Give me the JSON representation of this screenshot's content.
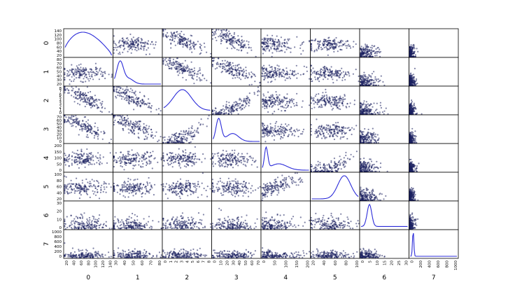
{
  "chart_data": {
    "type": "scatter_matrix",
    "variables": [
      "0",
      "1",
      "2",
      "3",
      "4",
      "5",
      "6",
      "7"
    ],
    "diagonal": "kde",
    "point_color": "#1a1f5e",
    "kde_color": "#2b2bd9",
    "ranges": [
      [
        10,
        150
      ],
      [
        20,
        90
      ],
      [
        0,
        8
      ],
      [
        0,
        70
      ],
      [
        0,
        200
      ],
      [
        10,
        110
      ],
      [
        0,
        32
      ],
      [
        0,
        1000
      ]
    ],
    "x_ticks": [
      [
        "20",
        "40",
        "60",
        "80",
        "100",
        "120",
        "140"
      ],
      [
        "30",
        "40",
        "50",
        "60",
        "70",
        "80"
      ],
      [
        "0",
        "1",
        "2",
        "3",
        "4",
        "5",
        "6",
        "7",
        "8"
      ],
      [
        "0",
        "10",
        "20",
        "30",
        "40",
        "50",
        "60",
        "70"
      ],
      [
        "0",
        "50",
        "100",
        "150",
        "200"
      ],
      [
        "20",
        "40",
        "60",
        "80",
        "100"
      ],
      [
        "0",
        "5",
        "10",
        "15",
        "20",
        "25",
        "30"
      ],
      [
        "0",
        "200",
        "400",
        "600",
        "800",
        "1000"
      ]
    ],
    "y_ticks": [
      [
        "20",
        "40",
        "60",
        "80",
        "100",
        "120",
        "140"
      ],
      [
        "20",
        "30",
        "40",
        "50",
        "60",
        "70",
        "80"
      ],
      [
        "0",
        "1",
        "2",
        "3",
        "4",
        "5",
        "6",
        "7",
        "8"
      ],
      [
        "0",
        "10",
        "20",
        "30",
        "40",
        "50",
        "60",
        "70"
      ],
      [
        "0",
        "50",
        "100",
        "150",
        "200"
      ],
      [
        "20",
        "40",
        "60",
        "80",
        "100"
      ],
      [
        "0",
        "10",
        "20",
        "30"
      ],
      [
        "0",
        "200",
        "400",
        "600",
        "800",
        "1000"
      ]
    ]
  }
}
